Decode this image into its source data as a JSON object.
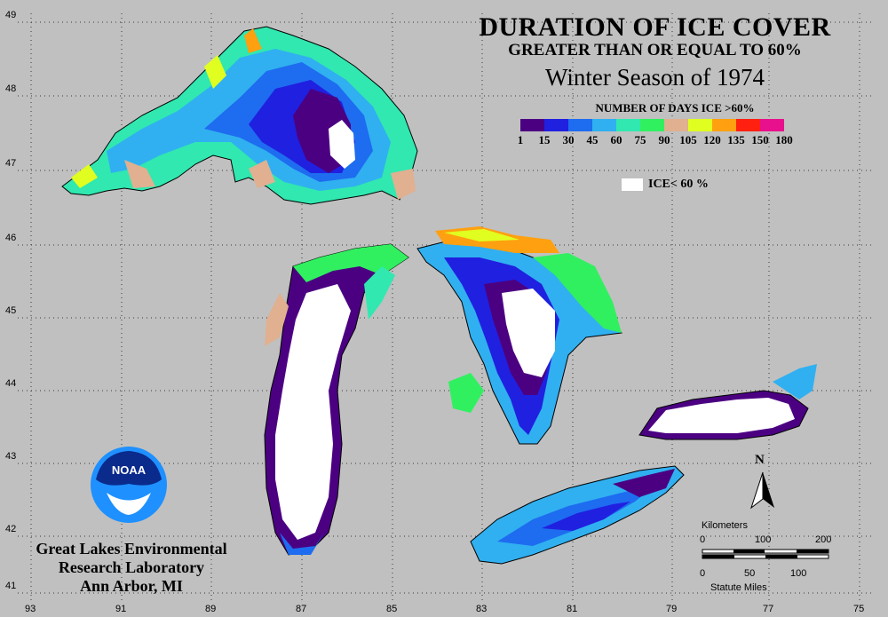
{
  "title": {
    "line1": "DURATION OF ICE COVER",
    "line2": "GREATER THAN OR EQUAL TO 60%",
    "line3": "Winter Season of 1974"
  },
  "legend": {
    "title": "NUMBER OF DAYS ICE >60%",
    "swatches": [
      "#4b0082",
      "#2020e0",
      "#1e6cf0",
      "#30b0f0",
      "#30e8b0",
      "#30f060",
      "#e0b090",
      "#e0ff20",
      "#ffa010",
      "#ff2010",
      "#e8108c"
    ],
    "labels": [
      "1",
      "15",
      "30",
      "45",
      "60",
      "75",
      "90",
      "105",
      "120",
      "135",
      "150",
      "180"
    ],
    "ice_label": "ICE< 60 %"
  },
  "axes": {
    "longitude": [
      "93",
      "91",
      "89",
      "87",
      "85",
      "83",
      "81",
      "79",
      "77",
      "75"
    ],
    "latitude": [
      "49",
      "48",
      "47",
      "46",
      "45",
      "44",
      "43",
      "42",
      "41"
    ]
  },
  "logo": {
    "text": "NOAA"
  },
  "organization": {
    "line1": "Great Lakes Environmental",
    "line2": "Research Laboratory",
    "line3": "Ann Arbor, MI"
  },
  "scale": {
    "km_label": "Kilometers",
    "km_ticks": [
      "0",
      "100",
      "200"
    ],
    "mi_ticks": [
      "0",
      "50",
      "100"
    ],
    "mi_label": "Statute Miles"
  },
  "north_label": "N",
  "colors": {
    "background": "#c0c0c0",
    "land_outline": "#000000",
    "ice_white": "#ffffff"
  }
}
